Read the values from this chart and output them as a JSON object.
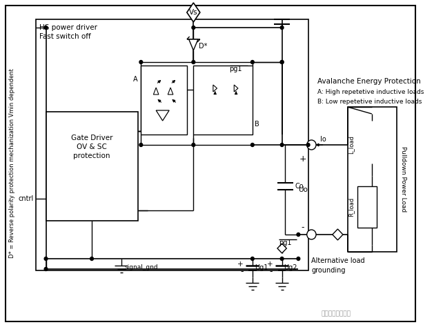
{
  "bg_color": "#ffffff",
  "left_label": "D* = Reverse polarity protection mechanization Vmin dependent",
  "hs_box_label1": "HS power driver",
  "hs_box_label2": "Fast switch off",
  "gate_driver_label1": "Gate Driver",
  "gate_driver_label2": "OV & SC",
  "gate_driver_label3": "protection",
  "cntrl_label": "cntrl",
  "signal_gnd_label": "signal_gnd",
  "vs_label": "Vs",
  "pg1_label_top": "pg1",
  "pg1_label_bot": "pg1",
  "co_label": "Co",
  "uo_label": "Uo",
  "io_label": "Io",
  "plus_label": "+",
  "minus_label": "-",
  "dstar_label": "D*",
  "a_label": "A",
  "b_label": "B",
  "ug1_label": "Ug1",
  "ug2_label": "Ug2",
  "l_load_label": "L_load",
  "r_load_label": "R_load",
  "pulldown_label": "Pulldown Power Load",
  "avalanche_label": "Avalanche Energy Protection",
  "a_desc": "A: High repetetive inductive loads",
  "b_desc": "B: Low repetetive inductive loads",
  "alt_load_label": "Alternative load",
  "grounding_label": "grounding",
  "watermark": "汽车电子硬件设计"
}
